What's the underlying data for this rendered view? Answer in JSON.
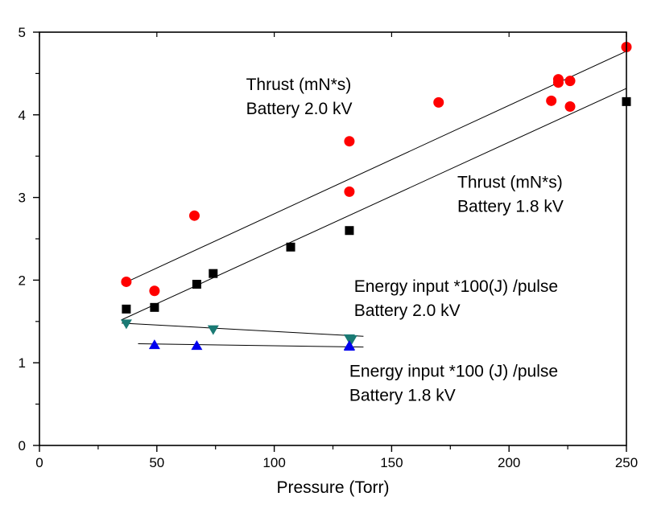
{
  "chart_data": {
    "type": "scatter",
    "xlabel": "Pressure (Torr)",
    "ylabel": "",
    "xlim": [
      0,
      250
    ],
    "ylim": [
      0,
      5
    ],
    "xticks": [
      0,
      50,
      100,
      150,
      200,
      250
    ],
    "yticks": [
      0,
      1,
      2,
      3,
      4,
      5
    ],
    "grid": false,
    "series": [
      {
        "marker": "circle",
        "color": "#ff0000",
        "points": [
          [
            37,
            1.98
          ],
          [
            49,
            1.87
          ],
          [
            66,
            2.78
          ],
          [
            132,
            3.07
          ],
          [
            132,
            3.68
          ],
          [
            170,
            4.15
          ],
          [
            218,
            4.17
          ],
          [
            221,
            4.43
          ],
          [
            221,
            4.39
          ],
          [
            226,
            4.41
          ],
          [
            226,
            4.1
          ],
          [
            250,
            4.82
          ]
        ],
        "fit": [
          [
            35,
            1.95
          ],
          [
            250,
            4.77
          ]
        ]
      },
      {
        "marker": "square",
        "color": "#000000",
        "points": [
          [
            37,
            1.65
          ],
          [
            49,
            1.67
          ],
          [
            67,
            1.95
          ],
          [
            74,
            2.08
          ],
          [
            107,
            2.4
          ],
          [
            132,
            2.6
          ],
          [
            250,
            4.16
          ]
        ],
        "fit": [
          [
            35,
            1.52
          ],
          [
            250,
            4.32
          ]
        ]
      },
      {
        "marker": "triangle-down",
        "color": "#1a7a74",
        "points": [
          [
            37,
            1.47
          ],
          [
            74,
            1.4
          ],
          [
            132,
            1.29
          ],
          [
            133,
            1.28
          ]
        ],
        "fit": [
          [
            35,
            1.48
          ],
          [
            138,
            1.32
          ]
        ]
      },
      {
        "marker": "triangle-up",
        "color": "#0000ee",
        "points": [
          [
            49,
            1.22
          ],
          [
            67,
            1.21
          ],
          [
            132,
            1.21
          ],
          [
            132,
            1.2
          ]
        ],
        "fit": [
          [
            42,
            1.23
          ],
          [
            138,
            1.19
          ]
        ]
      }
    ],
    "annotations": [
      {
        "lines": [
          "Thrust (mN*s)",
          "Battery 2.0 kV"
        ],
        "x": 88,
        "y": 4.3
      },
      {
        "lines": [
          "Thrust (mN*s)",
          "Battery 1.8 kV"
        ],
        "x": 178,
        "y": 3.12
      },
      {
        "lines": [
          "Energy input  *100(J) /pulse",
          "Battery 2.0 kV"
        ],
        "x": 134,
        "y": 1.86
      },
      {
        "lines": [
          "Energy input *100 (J) /pulse",
          "Battery 1.8 kV"
        ],
        "x": 132,
        "y": 0.83
      }
    ]
  }
}
